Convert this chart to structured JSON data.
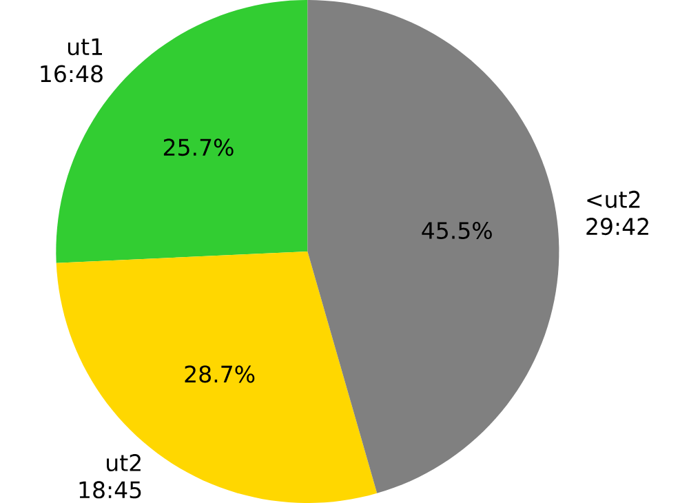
{
  "chart_data": {
    "type": "pie",
    "categories": [
      "ut1 16:48",
      "ut2 18:45",
      "<ut2 29:42"
    ],
    "values": [
      25.7,
      28.7,
      45.5
    ],
    "colors": [
      "#32cd32",
      "#ffd700",
      "#808080"
    ],
    "value_labels": [
      "25.7%",
      "28.7%",
      "45.5%"
    ]
  }
}
